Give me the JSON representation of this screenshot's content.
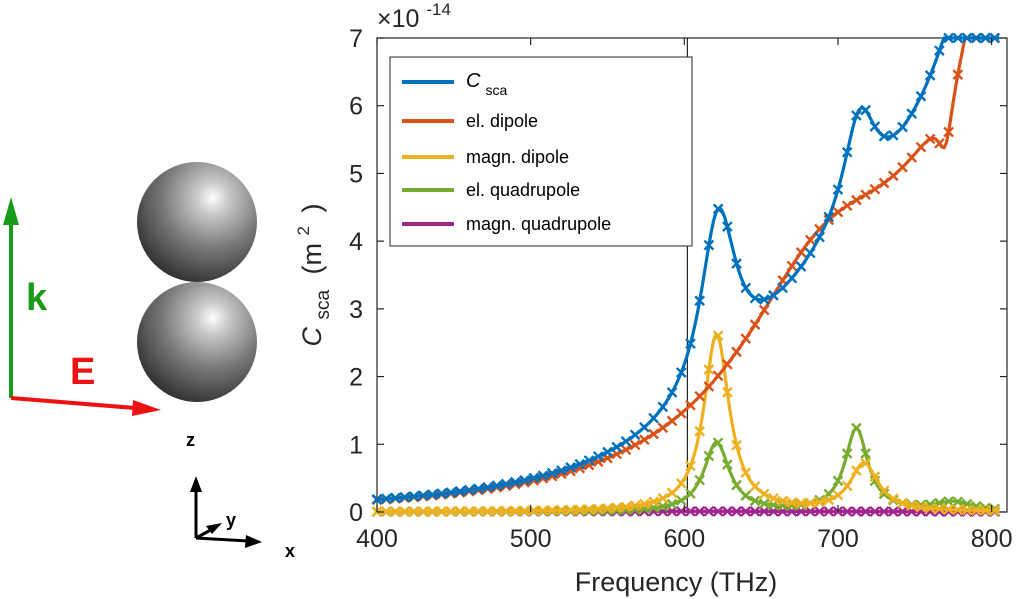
{
  "chart_data": {
    "type": "line",
    "xlabel": "Frequency (THz)",
    "ylabel_main": "C",
    "ylabel_sub": "sca",
    "ylabel_unit": "(m",
    "ylabel_unit_sup": "2",
    "ylabel_unit_close": ")",
    "exponent_base": "×10",
    "exponent_power": "-14",
    "xlim": [
      400,
      810
    ],
    "ylim": [
      0,
      7
    ],
    "xticks": [
      400,
      500,
      600,
      700,
      800
    ],
    "yticks": [
      0,
      1,
      2,
      3,
      4,
      5,
      6,
      7
    ],
    "vline_x": 602,
    "legend_position": "top-left",
    "series": [
      {
        "name": "C",
        "name_sub": "sca",
        "color": "#0072BD",
        "peaks": [
          [
            400,
            0.06,
            0
          ],
          [
            622,
            2.6,
            14
          ],
          [
            714,
            1.5,
            13
          ],
          [
            785,
            0.4,
            9
          ],
          [
            690,
            1.45,
            85
          ]
        ]
      },
      {
        "name": "el. dipole",
        "color": "#D95319",
        "peaks": [
          [
            400,
            0.05,
            0
          ],
          [
            690,
            2.35,
            70
          ],
          [
            788,
            0.4,
            10
          ]
        ],
        "dip": [
          770,
          0.8,
          6
        ]
      },
      {
        "name": "magn. dipole",
        "color": "#EDB120",
        "peaks": [
          [
            621,
            2.62,
            10
          ],
          [
            717,
            0.7,
            11
          ]
        ]
      },
      {
        "name": "el. quadrupole",
        "color": "#77AC30",
        "peaks": [
          [
            621,
            1.02,
            10
          ],
          [
            712,
            1.22,
            9
          ],
          [
            775,
            0.13,
            15
          ]
        ]
      },
      {
        "name": "magn.  quadrupole",
        "color": "#A0268E",
        "peaks": [
          [
            600,
            0.01,
            200
          ]
        ]
      }
    ]
  },
  "scene": {
    "k_label": "k",
    "e_label": "E",
    "axis_x": "x",
    "axis_y": "y",
    "axis_z": "z",
    "k_color": "#1a9a1a",
    "e_color": "#ee1111"
  }
}
